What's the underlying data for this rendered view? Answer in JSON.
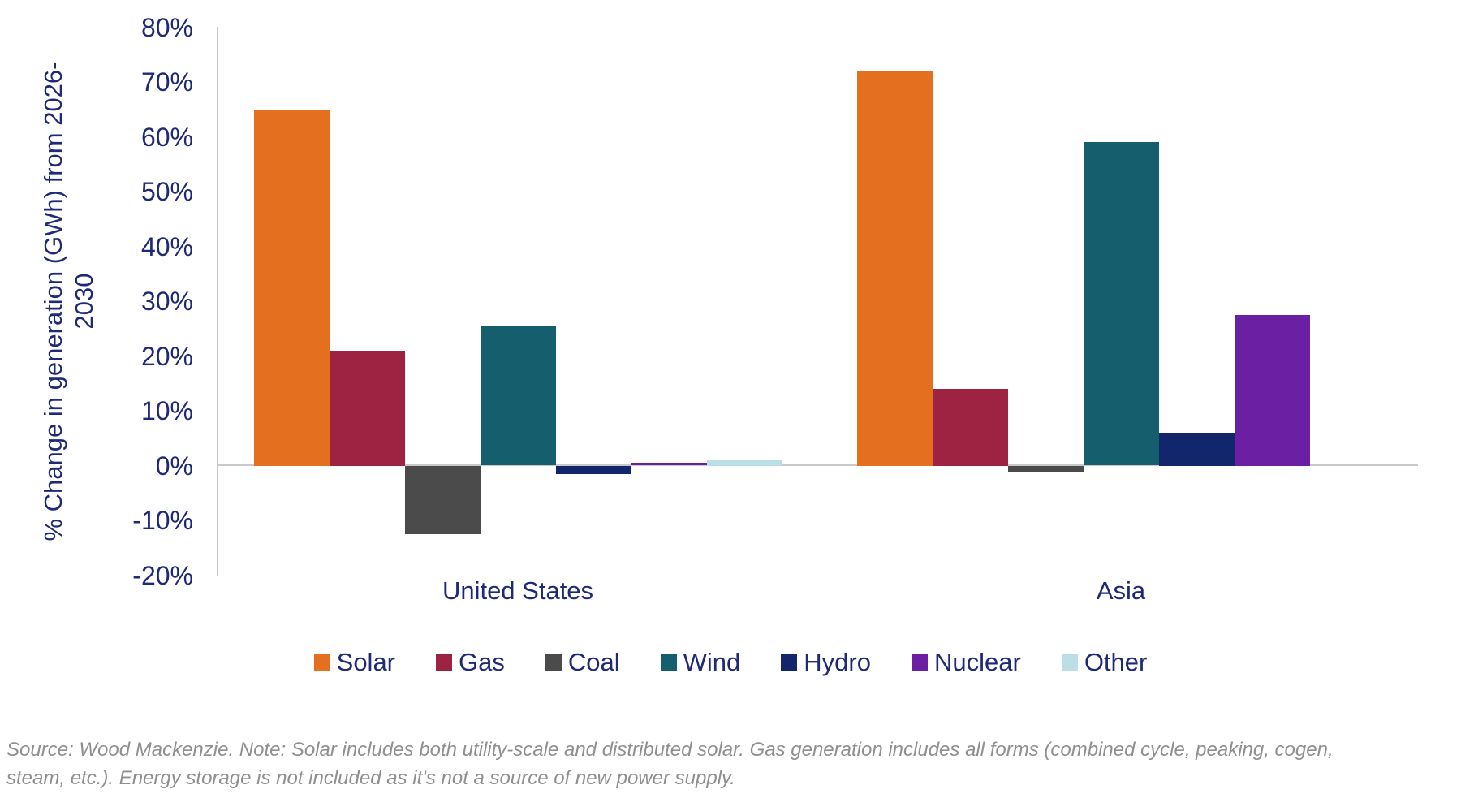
{
  "chart_data": {
    "type": "bar",
    "title": "",
    "categories": [
      "United States",
      "Asia"
    ],
    "series": [
      {
        "name": "Solar",
        "color": "#E36F1F",
        "values": [
          65,
          72
        ]
      },
      {
        "name": "Gas",
        "color": "#9E2343",
        "values": [
          21,
          14
        ]
      },
      {
        "name": "Coal",
        "color": "#4B4B4B",
        "values": [
          -12.5,
          -1
        ]
      },
      {
        "name": "Wind",
        "color": "#145E6E",
        "values": [
          25.5,
          59
        ]
      },
      {
        "name": "Hydro",
        "color": "#12266B",
        "values": [
          -1.5,
          6
        ]
      },
      {
        "name": "Nuclear",
        "color": "#6B1FA2",
        "values": [
          0.5,
          27.5
        ]
      },
      {
        "name": "Other",
        "color": "#BCDFE7",
        "values": [
          1,
          0
        ]
      }
    ],
    "xlabel": "",
    "ylabel": "% Change in generation (GWh) from 2026-2030",
    "ylabel_lines": [
      "% Change in generation (GWh) from 2026-",
      "2030"
    ],
    "yticks": [
      "80%",
      "70%",
      "60%",
      "50%",
      "40%",
      "30%",
      "20%",
      "10%",
      "0%",
      "-10%",
      "-20%"
    ],
    "ylim": [
      -20,
      80
    ],
    "grid": false,
    "legend_position": "bottom",
    "colors": {
      "text": "#1E2A75",
      "axis_line": "#C9C9C9",
      "footer_text": "#8F8F8F",
      "background": "#FFFFFF"
    }
  },
  "footer": {
    "lines": [
      "Source: Wood Mackenzie. Note: Solar includes both utility-scale and distributed solar. Gas generation includes all forms (combined cycle, peaking, cogen,",
      "steam, etc.). Energy storage is not included as it's not a source of new power supply."
    ]
  }
}
